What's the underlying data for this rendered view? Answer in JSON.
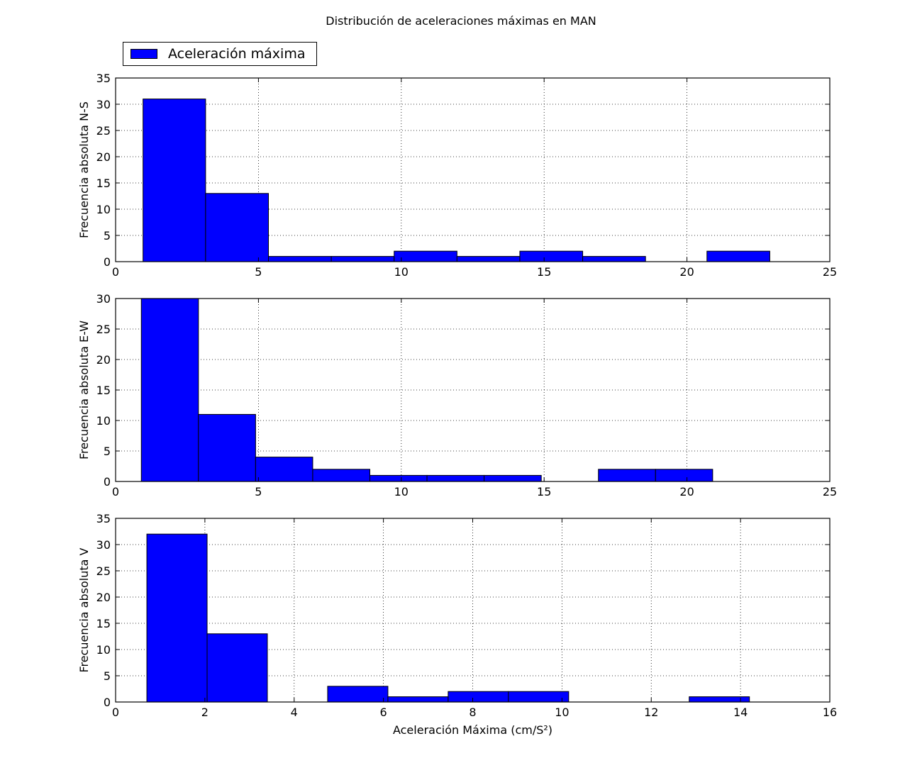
{
  "figure": {
    "title": "Distribución de aceleraciones máximas en MAN",
    "legend": {
      "label": "Aceleración máxima",
      "color": "#0000ff"
    }
  },
  "chart_data": [
    {
      "type": "bar",
      "subtype": "histogram",
      "title": "",
      "xlabel": "",
      "ylabel": "Frecuencia absoluta N-S",
      "xlim": [
        0,
        25
      ],
      "ylim": [
        0,
        35
      ],
      "xticks": [
        0,
        5,
        10,
        15,
        20,
        25
      ],
      "yticks": [
        0,
        5,
        10,
        15,
        20,
        25,
        30,
        35
      ],
      "grid": true,
      "bar_color": "#0000ff",
      "bins": [
        {
          "x0": 0.96,
          "x1": 3.15,
          "value": 31
        },
        {
          "x0": 3.15,
          "x1": 5.35,
          "value": 13
        },
        {
          "x0": 5.35,
          "x1": 7.55,
          "value": 1
        },
        {
          "x0": 7.55,
          "x1": 9.75,
          "value": 1
        },
        {
          "x0": 9.75,
          "x1": 11.95,
          "value": 2
        },
        {
          "x0": 11.95,
          "x1": 14.15,
          "value": 1
        },
        {
          "x0": 14.15,
          "x1": 16.35,
          "value": 2
        },
        {
          "x0": 16.35,
          "x1": 18.55,
          "value": 1
        },
        {
          "x0": 18.55,
          "x1": 20.7,
          "value": 0
        },
        {
          "x0": 20.7,
          "x1": 22.9,
          "value": 2
        }
      ]
    },
    {
      "type": "bar",
      "subtype": "histogram",
      "title": "",
      "xlabel": "",
      "ylabel": "Frecuencia absoluta E-W",
      "xlim": [
        0,
        25
      ],
      "ylim": [
        0,
        30
      ],
      "xticks": [
        0,
        5,
        10,
        15,
        20,
        25
      ],
      "yticks": [
        0,
        5,
        10,
        15,
        20,
        25,
        30
      ],
      "grid": true,
      "bar_color": "#0000ff",
      "bins": [
        {
          "x0": 0.9,
          "x1": 2.9,
          "value": 30
        },
        {
          "x0": 2.9,
          "x1": 4.9,
          "value": 11
        },
        {
          "x0": 4.9,
          "x1": 6.9,
          "value": 4
        },
        {
          "x0": 6.9,
          "x1": 8.9,
          "value": 2
        },
        {
          "x0": 8.9,
          "x1": 10.9,
          "value": 1
        },
        {
          "x0": 10.9,
          "x1": 12.9,
          "value": 1
        },
        {
          "x0": 12.9,
          "x1": 14.9,
          "value": 1
        },
        {
          "x0": 14.9,
          "x1": 16.9,
          "value": 0
        },
        {
          "x0": 16.9,
          "x1": 18.9,
          "value": 2
        },
        {
          "x0": 18.9,
          "x1": 20.9,
          "value": 2
        }
      ]
    },
    {
      "type": "bar",
      "subtype": "histogram",
      "title": "",
      "xlabel": "Aceleración Máxima (cm/S²)",
      "ylabel": "Frecuencia absoluta V",
      "xlim": [
        0,
        16
      ],
      "ylim": [
        0,
        35
      ],
      "xticks": [
        0,
        2,
        4,
        6,
        8,
        10,
        12,
        14,
        16
      ],
      "yticks": [
        0,
        5,
        10,
        15,
        20,
        25,
        30,
        35
      ],
      "grid": true,
      "bar_color": "#0000ff",
      "bins": [
        {
          "x0": 0.7,
          "x1": 2.05,
          "value": 32
        },
        {
          "x0": 2.05,
          "x1": 3.4,
          "value": 13
        },
        {
          "x0": 3.4,
          "x1": 4.75,
          "value": 0
        },
        {
          "x0": 4.75,
          "x1": 6.1,
          "value": 3
        },
        {
          "x0": 6.1,
          "x1": 7.45,
          "value": 1
        },
        {
          "x0": 7.45,
          "x1": 8.8,
          "value": 2
        },
        {
          "x0": 8.8,
          "x1": 10.15,
          "value": 2
        },
        {
          "x0": 10.15,
          "x1": 11.5,
          "value": 0
        },
        {
          "x0": 11.5,
          "x1": 12.85,
          "value": 0
        },
        {
          "x0": 12.85,
          "x1": 14.2,
          "value": 1
        }
      ]
    }
  ]
}
